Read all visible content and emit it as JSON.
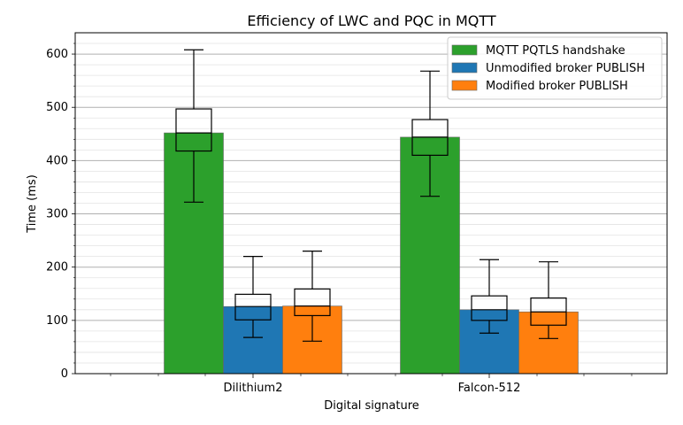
{
  "chart_data": {
    "type": "bar",
    "title": "Efficiency of LWC and PQC in MQTT",
    "xlabel": "Digital signature",
    "ylabel": "Time (ms)",
    "categories": [
      "Dilithium2",
      "Falcon-512"
    ],
    "ylim": [
      0,
      640
    ],
    "yticks": [
      0,
      100,
      200,
      300,
      400,
      500,
      600
    ],
    "grid": "horizontal major and minor lines",
    "legend_position": "top-right",
    "series": [
      {
        "name": "MQTT PQTLS handshake",
        "color": "#2ca02c",
        "values": [
          452,
          444
        ],
        "box": [
          {
            "whisker_low": 322,
            "q1": 418,
            "median": 452,
            "q3": 497,
            "whisker_high": 608
          },
          {
            "whisker_low": 333,
            "q1": 410,
            "median": 444,
            "q3": 477,
            "whisker_high": 568
          }
        ]
      },
      {
        "name": "Unmodified broker PUBLISH",
        "color": "#1f77b4",
        "values": [
          126,
          120
        ],
        "box": [
          {
            "whisker_low": 68,
            "q1": 101,
            "median": 126,
            "q3": 149,
            "whisker_high": 220
          },
          {
            "whisker_low": 76,
            "q1": 100,
            "median": 120,
            "q3": 146,
            "whisker_high": 214
          }
        ]
      },
      {
        "name": "Modified broker PUBLISH",
        "color": "#ff7f0e",
        "values": [
          127,
          116
        ],
        "box": [
          {
            "whisker_low": 61,
            "q1": 109,
            "median": 127,
            "q3": 159,
            "whisker_high": 230
          },
          {
            "whisker_low": 66,
            "q1": 91,
            "median": 116,
            "q3": 142,
            "whisker_high": 210
          }
        ]
      }
    ]
  }
}
